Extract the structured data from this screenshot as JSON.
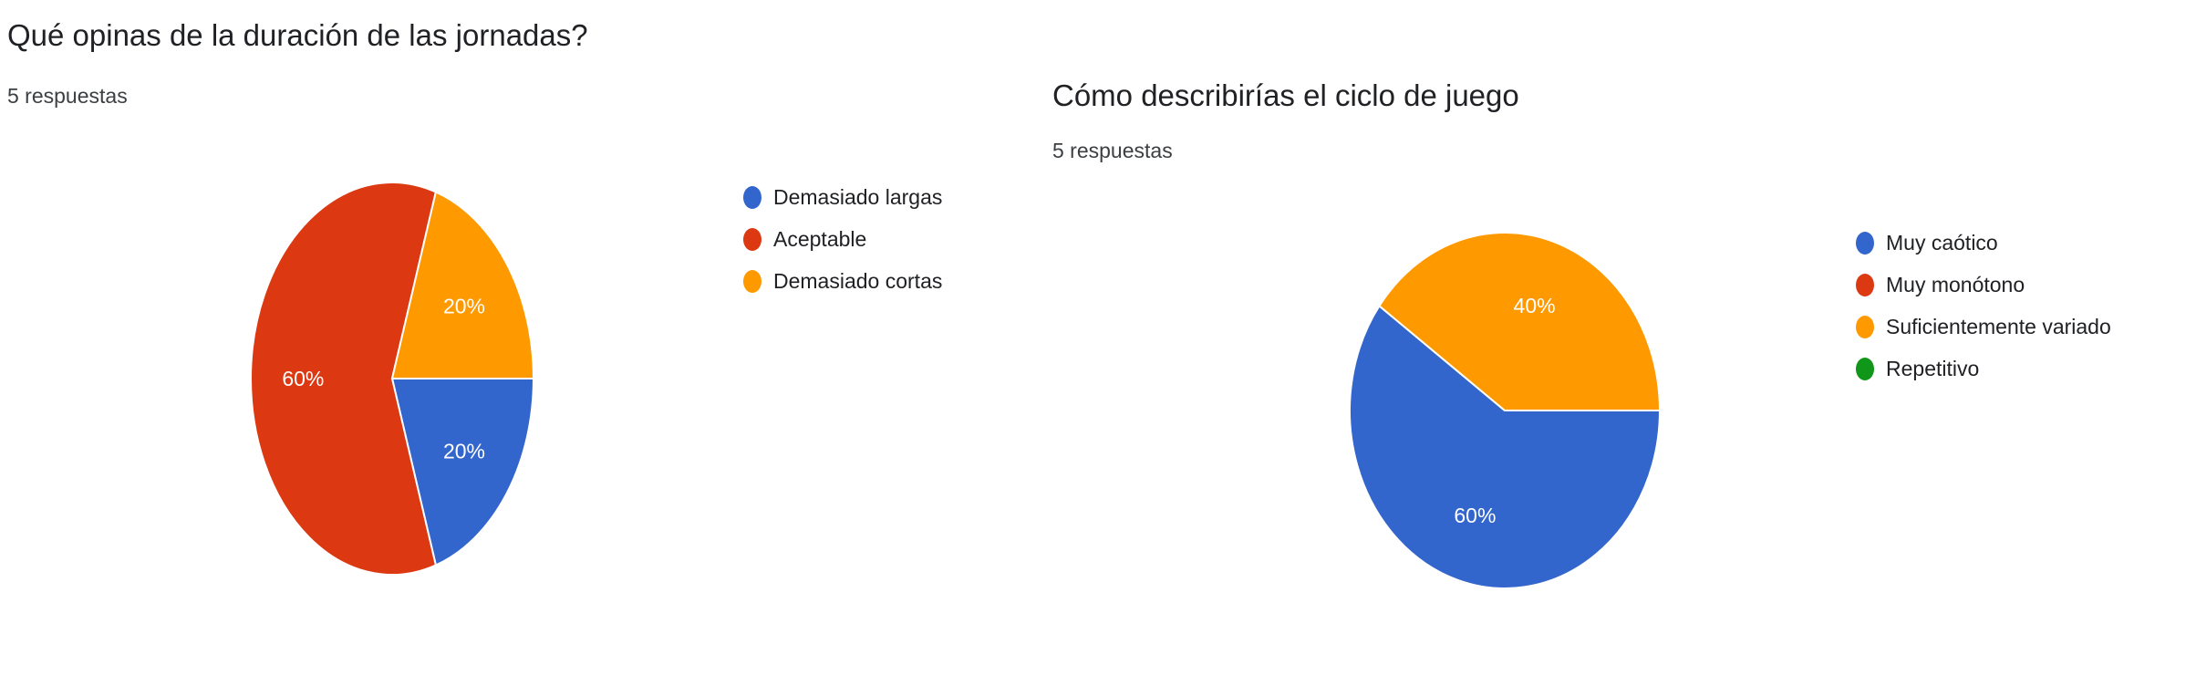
{
  "chart_data": [
    {
      "type": "pie",
      "title": "Qué opinas de la duración de las jornadas?",
      "subtitle": "5 respuestas",
      "categories": [
        "Demasiado largas",
        "Aceptable",
        "Demasiado cortas"
      ],
      "values": [
        20,
        60,
        20
      ],
      "value_labels": [
        "20%",
        "60%",
        "20%"
      ],
      "colors": [
        "#3366cc",
        "#dc3912",
        "#ff9900"
      ],
      "legend_position": "right"
    },
    {
      "type": "pie",
      "title": "Cómo describirías el ciclo de juego",
      "subtitle": "5 respuestas",
      "categories": [
        "Muy caótico",
        "Muy monótono",
        "Suficientemente variado",
        "Repetitivo"
      ],
      "values": [
        60,
        0,
        40,
        0
      ],
      "value_labels": [
        "60%",
        "",
        "40%",
        ""
      ],
      "colors": [
        "#3366cc",
        "#dc3912",
        "#ff9900",
        "#109618"
      ],
      "legend_position": "right"
    }
  ]
}
